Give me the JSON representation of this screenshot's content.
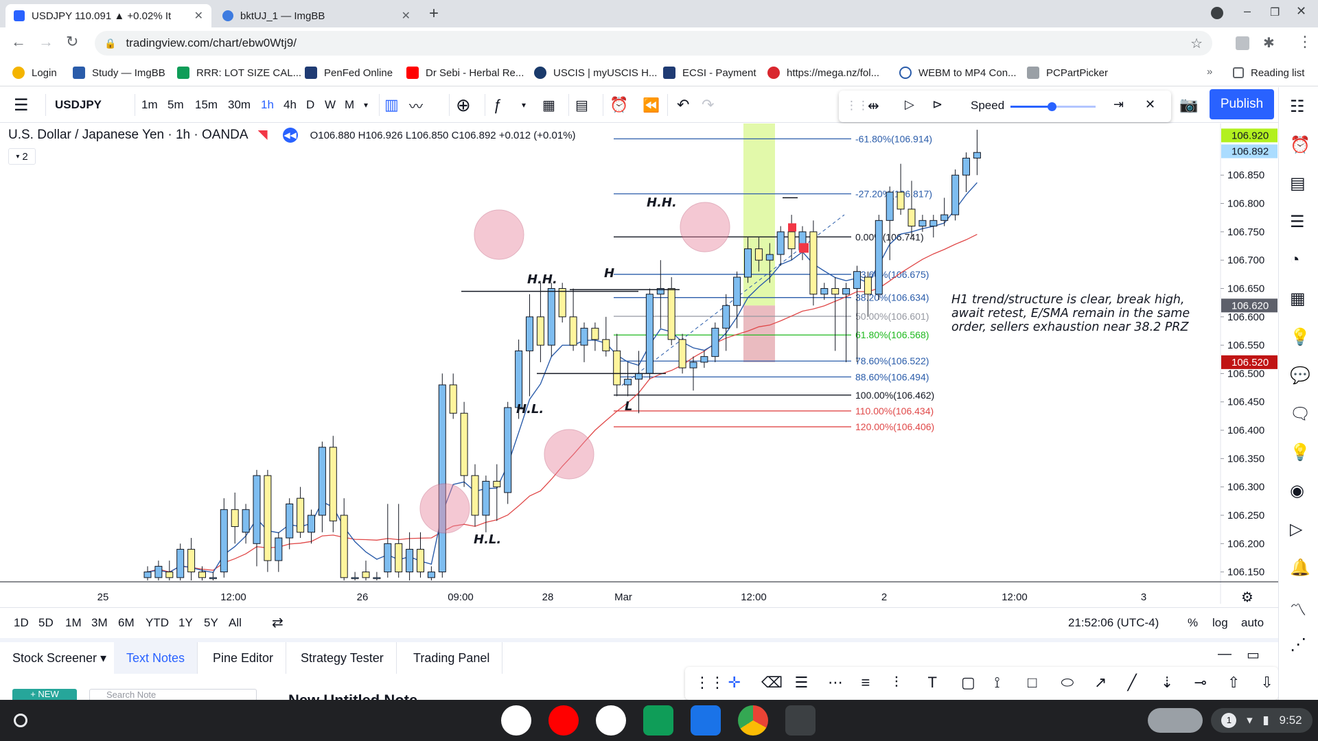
{
  "browser": {
    "tabs": [
      {
        "title": "USDJPY 110.091 ▲ +0.02% It",
        "active": true
      },
      {
        "title": "bktUJ_1 — ImgBB",
        "active": false
      }
    ],
    "url": "tradingview.com/chart/ebw0Wtj9/",
    "bookmarks": [
      "Login",
      "Study — ImgBB",
      "RRR: LOT SIZE CAL...",
      "PenFed Online",
      "Dr Sebi - Herbal Re...",
      "USCIS | myUSCIS H...",
      "ECSI - Payment",
      "https://mega.nz/fol...",
      "WEBM to MP4 Con...",
      "PCPartPicker"
    ],
    "reading_list": "Reading list"
  },
  "toolbar": {
    "symbol": "USDJPY",
    "intervals": [
      "1m",
      "5m",
      "15m",
      "30m",
      "1h",
      "4h",
      "D",
      "W",
      "M"
    ],
    "active_interval": "1h",
    "speed_label": "Speed",
    "publish": "Publish"
  },
  "header": {
    "title": "U.S. Dollar / Japanese Yen · 1h · OANDA",
    "ohlc": "O106.880 H106.926 L106.850 C106.892 +0.012 (+0.01%)",
    "indicator_count": "2"
  },
  "chart_data": {
    "type": "candlestick",
    "symbol": "USDJPY",
    "interval": "1h",
    "ylim": [
      106.135,
      106.935
    ],
    "y_ticks": [
      "106.850",
      "106.800",
      "106.750",
      "106.700",
      "106.650",
      "106.600",
      "106.550",
      "106.500",
      "106.450",
      "106.400",
      "106.350",
      "106.300",
      "106.250",
      "106.200",
      "106.150"
    ],
    "x_ticks": [
      "25",
      "12:00",
      "26",
      "09:00",
      "28",
      "Mar",
      "12:00",
      "2",
      "12:00",
      "3"
    ],
    "price_badges": [
      {
        "label": "106.920",
        "price": 106.92,
        "color": "#b2f01f",
        "text": "#131722"
      },
      {
        "label": "106.892",
        "price": 106.892,
        "color": "#aadcff",
        "text": "#131722"
      },
      {
        "label": "106.620",
        "price": 106.62,
        "color": "#5d606b",
        "text": "#ffffff"
      },
      {
        "label": "106.520",
        "price": 106.52,
        "color": "#c01414",
        "text": "#ffffff"
      }
    ],
    "fib_levels": [
      {
        "label": "-61.80%(106.914)",
        "price": 106.914,
        "color": "#2a5caa"
      },
      {
        "label": "-27.20%(106.817)",
        "price": 106.817,
        "color": "#2a5caa"
      },
      {
        "label": "0.00%(106.741)",
        "price": 106.741,
        "color": "#131722"
      },
      {
        "label": "23.60%(106.675)",
        "price": 106.675,
        "color": "#2a5caa"
      },
      {
        "label": "38.20%(106.634)",
        "price": 106.634,
        "color": "#2a5caa"
      },
      {
        "label": "50.00%(106.601)",
        "price": 106.601,
        "color": "#9598a1"
      },
      {
        "label": "61.80%(106.568)",
        "price": 106.568,
        "color": "#1eb91e"
      },
      {
        "label": "78.60%(106.522)",
        "price": 106.522,
        "color": "#2a5caa"
      },
      {
        "label": "88.60%(106.494)",
        "price": 106.494,
        "color": "#2a5caa"
      },
      {
        "label": "100.00%(106.462)",
        "price": 106.462,
        "color": "#131722"
      },
      {
        "label": "110.00%(106.434)",
        "price": 106.434,
        "color": "#e04848"
      },
      {
        "label": "120.00%(106.406)",
        "price": 106.406,
        "color": "#e04848"
      }
    ],
    "candles": [
      {
        "o": 106.14,
        "h": 106.16,
        "l": 106.13,
        "c": 106.15
      },
      {
        "o": 106.14,
        "h": 106.17,
        "l": 106.13,
        "c": 106.16
      },
      {
        "o": 106.15,
        "h": 106.17,
        "l": 106.13,
        "c": 106.14
      },
      {
        "o": 106.14,
        "h": 106.2,
        "l": 106.13,
        "c": 106.19
      },
      {
        "o": 106.19,
        "h": 106.21,
        "l": 106.13,
        "c": 106.15
      },
      {
        "o": 106.15,
        "h": 106.16,
        "l": 106.13,
        "c": 106.14
      },
      {
        "o": 106.14,
        "h": 106.15,
        "l": 106.13,
        "c": 106.14
      },
      {
        "o": 106.15,
        "h": 106.28,
        "l": 106.14,
        "c": 106.26
      },
      {
        "o": 106.26,
        "h": 106.29,
        "l": 106.2,
        "c": 106.23
      },
      {
        "o": 106.22,
        "h": 106.27,
        "l": 106.2,
        "c": 106.26
      },
      {
        "o": 106.2,
        "h": 106.33,
        "l": 106.16,
        "c": 106.32
      },
      {
        "o": 106.32,
        "h": 106.33,
        "l": 106.15,
        "c": 106.17
      },
      {
        "o": 106.17,
        "h": 106.22,
        "l": 106.15,
        "c": 106.21
      },
      {
        "o": 106.21,
        "h": 106.28,
        "l": 106.19,
        "c": 106.27
      },
      {
        "o": 106.28,
        "h": 106.3,
        "l": 106.21,
        "c": 106.22
      },
      {
        "o": 106.22,
        "h": 106.26,
        "l": 106.2,
        "c": 106.25
      },
      {
        "o": 106.25,
        "h": 106.38,
        "l": 106.22,
        "c": 106.37
      },
      {
        "o": 106.37,
        "h": 106.39,
        "l": 106.22,
        "c": 106.24
      },
      {
        "o": 106.25,
        "h": 106.28,
        "l": 106.13,
        "c": 106.14
      },
      {
        "o": 106.14,
        "h": 106.15,
        "l": 106.13,
        "c": 106.14
      },
      {
        "o": 106.15,
        "h": 106.17,
        "l": 106.13,
        "c": 106.14
      },
      {
        "o": 106.14,
        "h": 106.15,
        "l": 106.13,
        "c": 106.14
      },
      {
        "o": 106.15,
        "h": 106.27,
        "l": 106.14,
        "c": 106.2
      },
      {
        "o": 106.2,
        "h": 106.27,
        "l": 106.14,
        "c": 106.15
      },
      {
        "o": 106.15,
        "h": 106.22,
        "l": 106.13,
        "c": 106.19
      },
      {
        "o": 106.19,
        "h": 106.22,
        "l": 106.14,
        "c": 106.15
      },
      {
        "o": 106.14,
        "h": 106.16,
        "l": 106.13,
        "c": 106.15
      },
      {
        "o": 106.15,
        "h": 106.5,
        "l": 106.14,
        "c": 106.48
      },
      {
        "o": 106.48,
        "h": 106.5,
        "l": 106.42,
        "c": 106.43
      },
      {
        "o": 106.43,
        "h": 106.45,
        "l": 106.3,
        "c": 106.32
      },
      {
        "o": 106.32,
        "h": 106.34,
        "l": 106.23,
        "c": 106.25
      },
      {
        "o": 106.25,
        "h": 106.32,
        "l": 106.22,
        "c": 106.31
      },
      {
        "o": 106.31,
        "h": 106.34,
        "l": 106.24,
        "c": 106.3
      },
      {
        "o": 106.29,
        "h": 106.45,
        "l": 106.27,
        "c": 106.44
      },
      {
        "o": 106.44,
        "h": 106.56,
        "l": 106.42,
        "c": 106.54
      },
      {
        "o": 106.54,
        "h": 106.64,
        "l": 106.46,
        "c": 106.6
      },
      {
        "o": 106.6,
        "h": 106.66,
        "l": 106.52,
        "c": 106.55
      },
      {
        "o": 106.55,
        "h": 106.66,
        "l": 106.53,
        "c": 106.65
      },
      {
        "o": 106.65,
        "h": 106.66,
        "l": 106.59,
        "c": 106.6
      },
      {
        "o": 106.6,
        "h": 106.65,
        "l": 106.54,
        "c": 106.55
      },
      {
        "o": 106.55,
        "h": 106.59,
        "l": 106.52,
        "c": 106.58
      },
      {
        "o": 106.58,
        "h": 106.59,
        "l": 106.54,
        "c": 106.56
      },
      {
        "o": 106.56,
        "h": 106.6,
        "l": 106.53,
        "c": 106.54
      },
      {
        "o": 106.54,
        "h": 106.57,
        "l": 106.46,
        "c": 106.48
      },
      {
        "o": 106.48,
        "h": 106.52,
        "l": 106.46,
        "c": 106.49
      },
      {
        "o": 106.49,
        "h": 106.54,
        "l": 106.43,
        "c": 106.5
      },
      {
        "o": 106.5,
        "h": 106.65,
        "l": 106.49,
        "c": 106.64
      },
      {
        "o": 106.64,
        "h": 106.7,
        "l": 106.58,
        "c": 106.65
      },
      {
        "o": 106.65,
        "h": 106.67,
        "l": 106.55,
        "c": 106.56
      },
      {
        "o": 106.56,
        "h": 106.57,
        "l": 106.5,
        "c": 106.51
      },
      {
        "o": 106.51,
        "h": 106.53,
        "l": 106.47,
        "c": 106.52
      },
      {
        "o": 106.52,
        "h": 106.54,
        "l": 106.51,
        "c": 106.53
      },
      {
        "o": 106.53,
        "h": 106.59,
        "l": 106.52,
        "c": 106.58
      },
      {
        "o": 106.58,
        "h": 106.64,
        "l": 106.54,
        "c": 106.62
      },
      {
        "o": 106.62,
        "h": 106.68,
        "l": 106.58,
        "c": 106.67
      },
      {
        "o": 106.67,
        "h": 106.74,
        "l": 106.66,
        "c": 106.72
      },
      {
        "o": 106.72,
        "h": 106.74,
        "l": 106.68,
        "c": 106.7
      },
      {
        "o": 106.7,
        "h": 106.73,
        "l": 106.66,
        "c": 106.71
      },
      {
        "o": 106.71,
        "h": 106.76,
        "l": 106.69,
        "c": 106.75
      },
      {
        "o": 106.75,
        "h": 106.78,
        "l": 106.7,
        "c": 106.72
      },
      {
        "o": 106.72,
        "h": 106.76,
        "l": 106.7,
        "c": 106.75
      },
      {
        "o": 106.75,
        "h": 106.77,
        "l": 106.62,
        "c": 106.64
      },
      {
        "o": 106.64,
        "h": 106.66,
        "l": 106.63,
        "c": 106.65
      },
      {
        "o": 106.65,
        "h": 106.67,
        "l": 106.54,
        "c": 106.64
      },
      {
        "o": 106.64,
        "h": 106.66,
        "l": 106.52,
        "c": 106.65
      },
      {
        "o": 106.65,
        "h": 106.69,
        "l": 106.52,
        "c": 106.68
      },
      {
        "o": 106.67,
        "h": 106.68,
        "l": 106.6,
        "c": 106.64
      },
      {
        "o": 106.64,
        "h": 106.78,
        "l": 106.63,
        "c": 106.77
      },
      {
        "o": 106.77,
        "h": 106.83,
        "l": 106.7,
        "c": 106.82
      },
      {
        "o": 106.82,
        "h": 106.87,
        "l": 106.78,
        "c": 106.79
      },
      {
        "o": 106.79,
        "h": 106.84,
        "l": 106.74,
        "c": 106.76
      },
      {
        "o": 106.76,
        "h": 106.78,
        "l": 106.75,
        "c": 106.77
      },
      {
        "o": 106.76,
        "h": 106.78,
        "l": 106.74,
        "c": 106.77
      },
      {
        "o": 106.77,
        "h": 106.81,
        "l": 106.76,
        "c": 106.78
      },
      {
        "o": 106.78,
        "h": 106.86,
        "l": 106.77,
        "c": 106.85
      },
      {
        "o": 106.85,
        "h": 106.89,
        "l": 106.82,
        "c": 106.88
      },
      {
        "o": 106.88,
        "h": 106.93,
        "l": 106.85,
        "c": 106.89
      }
    ],
    "annotations": {
      "labels": [
        "H.H.",
        "H.H.",
        "H",
        "H.L.",
        "H.L.",
        "L"
      ],
      "note": "H1 trend/structure is clear, break high, await retest, E/SMA remain in the same order, sellers exhaustion near 38.2 PRZ"
    },
    "series": [
      {
        "name": "",
        "color": "#2a5caa"
      },
      {
        "name": "",
        "color": "#e04848"
      }
    ]
  },
  "rangebar": {
    "ranges": [
      "1D",
      "5D",
      "1M",
      "3M",
      "6M",
      "YTD",
      "1Y",
      "5Y",
      "All"
    ],
    "time": "21:52:06 (UTC-4)",
    "percent": "%",
    "log": "log",
    "auto": "auto"
  },
  "panels": {
    "tabs": [
      "Stock Screener",
      "Text Notes",
      "Pine Editor",
      "Strategy Tester",
      "Trading Panel"
    ],
    "active": "Text Notes",
    "new_button": "+ NEW",
    "search_placeholder": "Search Note",
    "note_title": "New Untitled Note"
  },
  "system": {
    "clock": "9:52",
    "notification_count": "1"
  }
}
